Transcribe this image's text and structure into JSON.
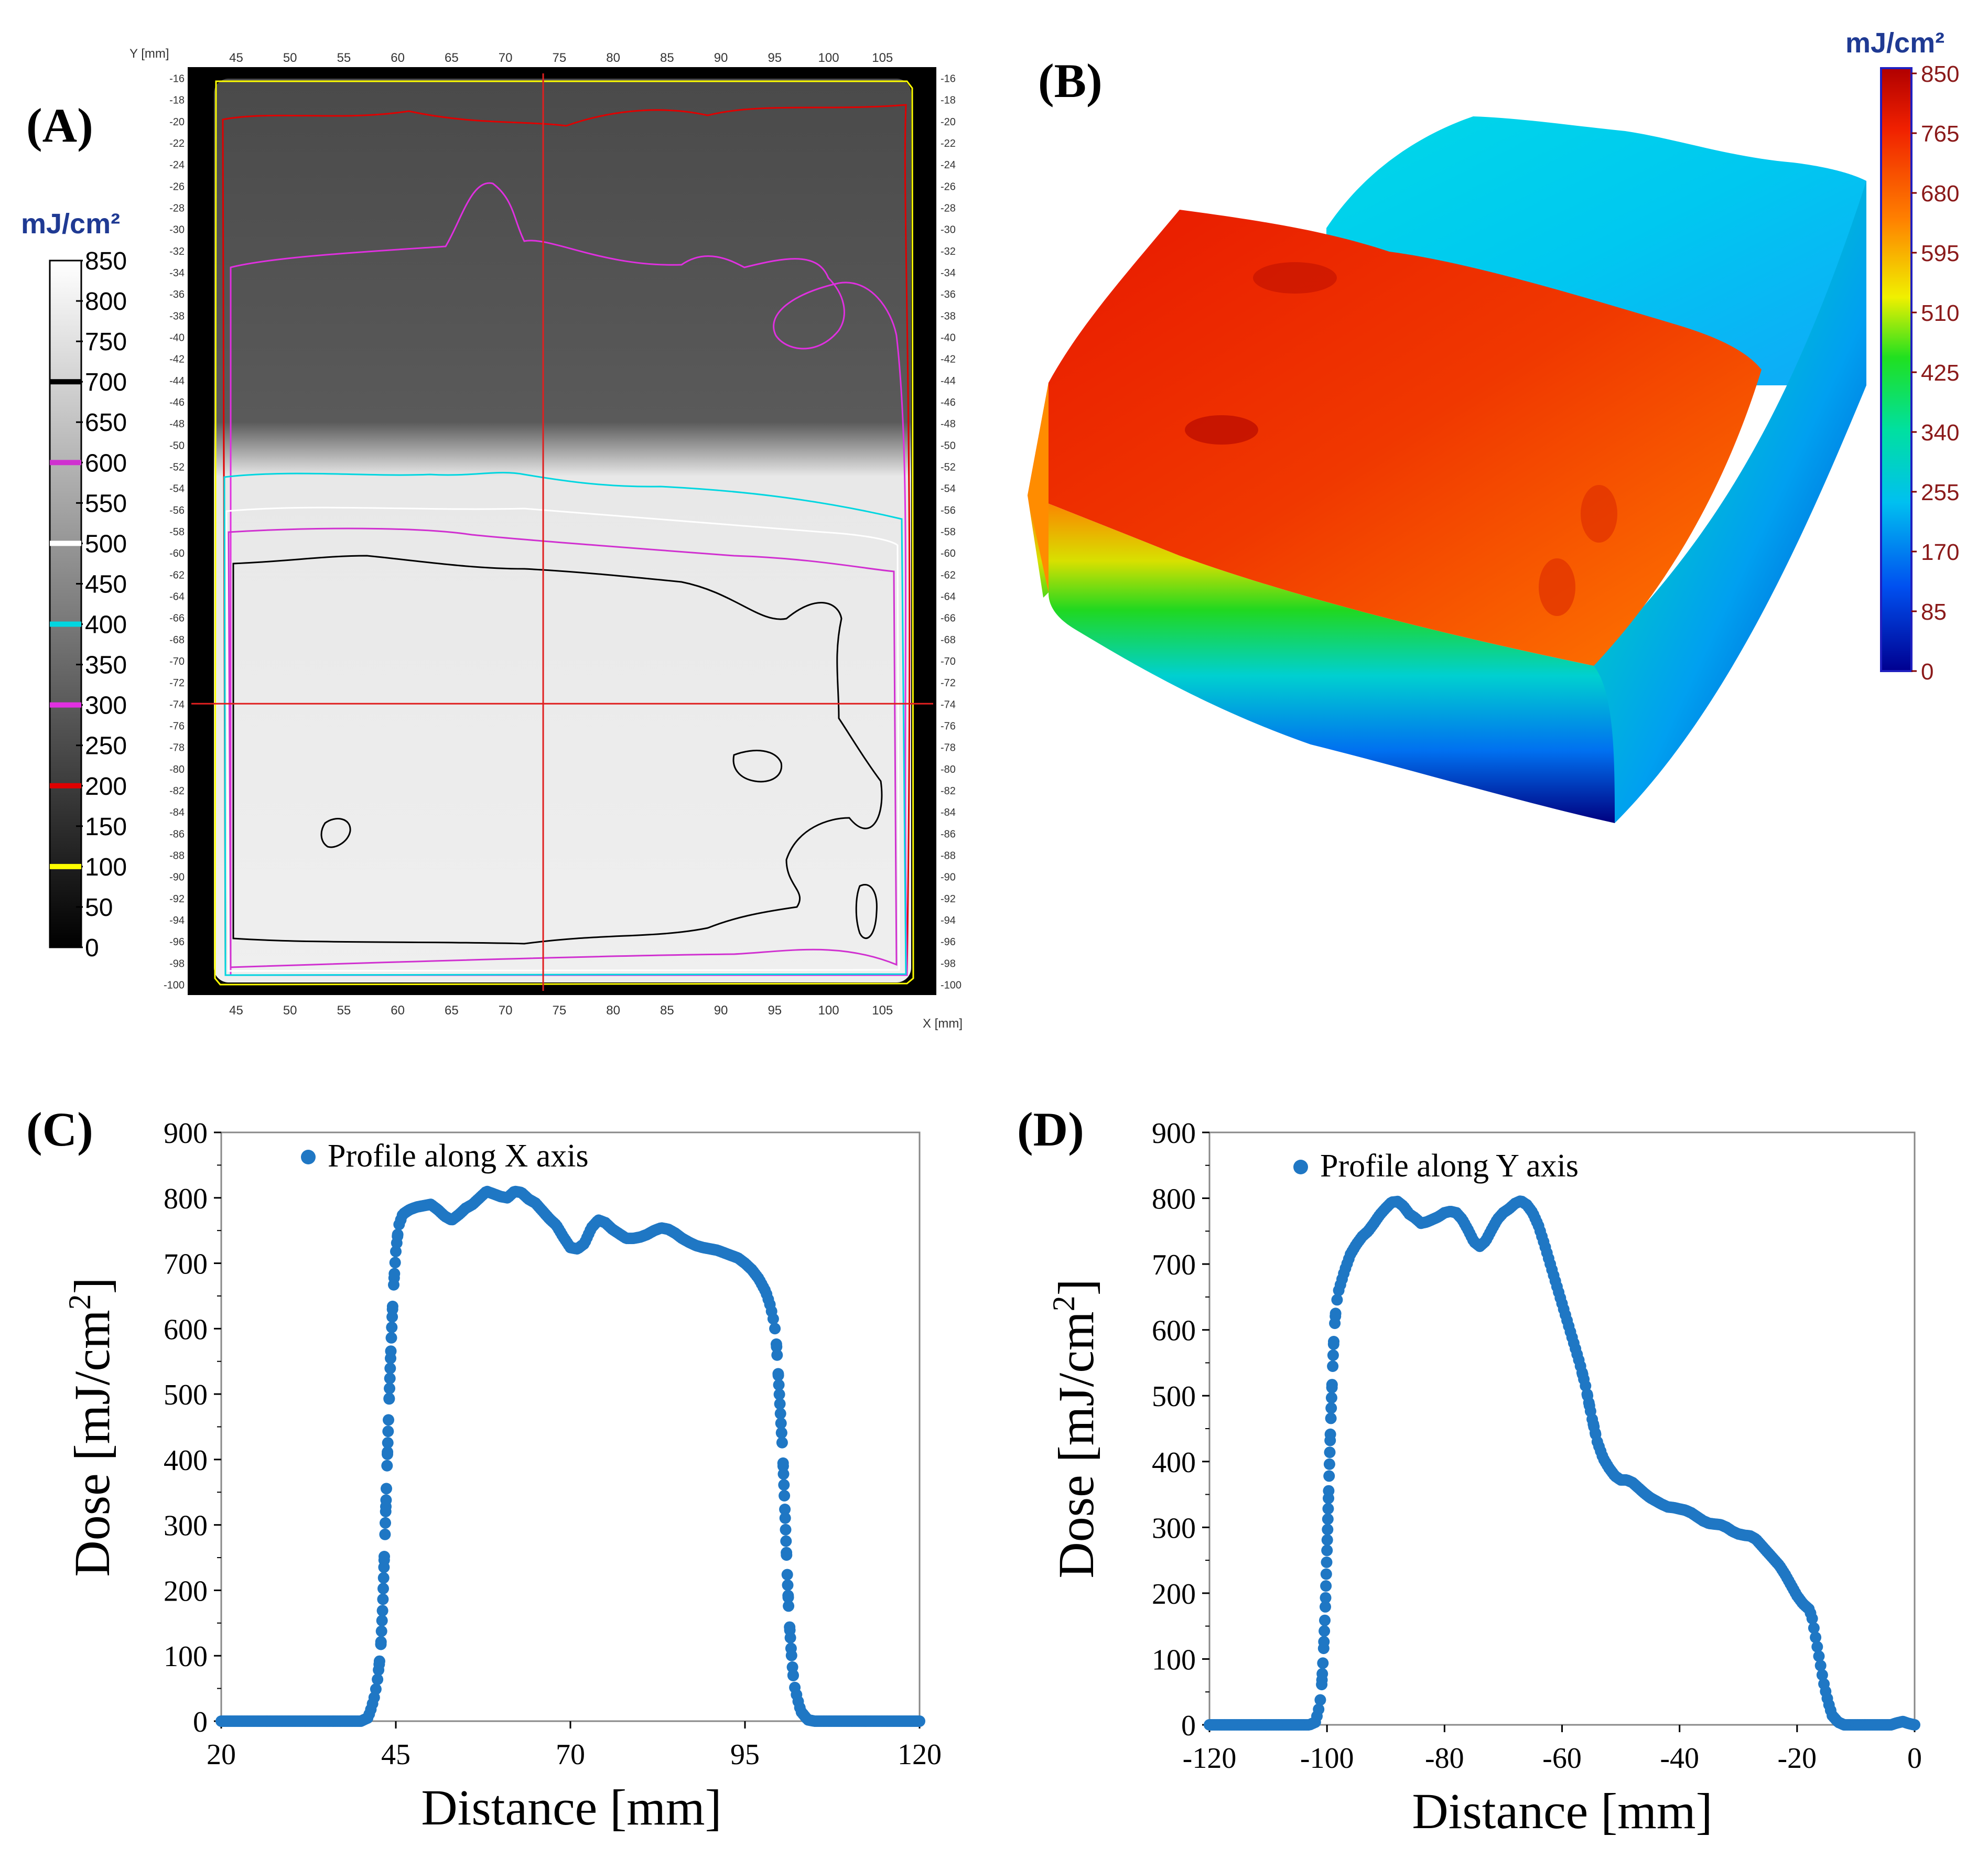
{
  "panels": {
    "a": {
      "label": "(A)"
    },
    "b": {
      "label": "(B)"
    },
    "c": {
      "label": "(C)"
    },
    "d": {
      "label": "(D)"
    }
  },
  "colors": {
    "accent": "#1f77c4",
    "unit_blue": "#1f3a93",
    "crosshair": "#e02020",
    "contour_100": "#ffff00",
    "contour_200": "#e00000",
    "contour_300": "#e030e0",
    "contour_400": "#00d6e0",
    "contour_500": "#ffffff",
    "contour_600": "#d030d0",
    "contour_700": "#000000"
  },
  "chart_data": [
    {
      "id": "A",
      "type": "heatmap",
      "title": "(A)",
      "colorbar_unit": "mJ/cm²",
      "colorbar_ticks": [
        "850",
        "800",
        "750",
        "700",
        "650",
        "600",
        "550",
        "500",
        "450",
        "400",
        "350",
        "300",
        "250",
        "200",
        "150",
        "100",
        "50",
        "0"
      ],
      "colorbar_range": [
        0,
        850
      ],
      "x_axis_label": "X [mm]",
      "y_axis_label": "Y [mm]",
      "x_ticks": [
        "45",
        "50",
        "55",
        "60",
        "65",
        "70",
        "75",
        "80",
        "85",
        "90",
        "95",
        "100",
        "105"
      ],
      "y_ticks": [
        "-16",
        "-18",
        "-20",
        "-22",
        "-24",
        "-26",
        "-28",
        "-30",
        "-32",
        "-34",
        "-36",
        "-38",
        "-40",
        "-42",
        "-44",
        "-46",
        "-48",
        "-50",
        "-52",
        "-54",
        "-56",
        "-58",
        "-60",
        "-62",
        "-64",
        "-66",
        "-68",
        "-70",
        "-72",
        "-74",
        "-76",
        "-78",
        "-80",
        "-82",
        "-84",
        "-86",
        "-88",
        "-90",
        "-92",
        "-94",
        "-96",
        "-98",
        "-100"
      ],
      "x_range": [
        40.5,
        110
      ],
      "y_range": [
        -15,
        -101
      ],
      "contour_levels": [
        100,
        200,
        300,
        400,
        500,
        600,
        700
      ],
      "crosshair": {
        "x": 73.5,
        "y": -74
      }
    },
    {
      "id": "B",
      "type": "heatmap",
      "title": "(B)",
      "colorbar_unit": "mJ/cm²",
      "colorbar_ticks": [
        "850",
        "765",
        "680",
        "595",
        "510",
        "425",
        "340",
        "255",
        "170",
        "85",
        "0"
      ],
      "colorbar_range": [
        0,
        850
      ]
    },
    {
      "id": "C",
      "type": "scatter",
      "title": "(C)",
      "legend": "Profile along X axis",
      "xlabel": "Distance [mm]",
      "ylabel_main": "Dose [mJ/cm",
      "ylabel_sup": "2",
      "ylabel_end": "]",
      "xlim": [
        20,
        120
      ],
      "ylim": [
        0,
        900
      ],
      "x_ticks": [
        "20",
        "45",
        "70",
        "95",
        "120"
      ],
      "y_ticks": [
        "0",
        "100",
        "200",
        "300",
        "400",
        "500",
        "600",
        "700",
        "800",
        "900"
      ],
      "series_points": [
        [
          20,
          0
        ],
        [
          40,
          0
        ],
        [
          41,
          5
        ],
        [
          41.5,
          20
        ],
        [
          42,
          40
        ],
        [
          42.4,
          65
        ],
        [
          42.8,
          105
        ],
        [
          43.1,
          170
        ],
        [
          43.4,
          268
        ],
        [
          43.7,
          373
        ],
        [
          44,
          478
        ],
        [
          44.3,
          570
        ],
        [
          44.6,
          650
        ],
        [
          45,
          718
        ],
        [
          45.4,
          757
        ],
        [
          46,
          775
        ],
        [
          47,
          782
        ],
        [
          48,
          786
        ],
        [
          50,
          790
        ],
        [
          51,
          782
        ],
        [
          52,
          772
        ],
        [
          53,
          766
        ],
        [
          54,
          774
        ],
        [
          55,
          784
        ],
        [
          56,
          790
        ],
        [
          57,
          800
        ],
        [
          58,
          810
        ],
        [
          59,
          806
        ],
        [
          60,
          802
        ],
        [
          61,
          800
        ],
        [
          62,
          810
        ],
        [
          63,
          808
        ],
        [
          64,
          798
        ],
        [
          65,
          792
        ],
        [
          66,
          780
        ],
        [
          67,
          768
        ],
        [
          68,
          758
        ],
        [
          69,
          740
        ],
        [
          70,
          724
        ],
        [
          71,
          722
        ],
        [
          72,
          730
        ],
        [
          73,
          754
        ],
        [
          74,
          766
        ],
        [
          75,
          762
        ],
        [
          76,
          752
        ],
        [
          77,
          745
        ],
        [
          78,
          738
        ],
        [
          79,
          738
        ],
        [
          80,
          740
        ],
        [
          81,
          744
        ],
        [
          82,
          750
        ],
        [
          83,
          754
        ],
        [
          84,
          752
        ],
        [
          85,
          746
        ],
        [
          86,
          738
        ],
        [
          87,
          732
        ],
        [
          88,
          727
        ],
        [
          89,
          724
        ],
        [
          90,
          722
        ],
        [
          91,
          720
        ],
        [
          92,
          716
        ],
        [
          93,
          712
        ],
        [
          94,
          708
        ],
        [
          95,
          700
        ],
        [
          96,
          690
        ],
        [
          97,
          676
        ],
        [
          98,
          656
        ],
        [
          98.6,
          636
        ],
        [
          99,
          618
        ],
        [
          99.4,
          593
        ],
        [
          99.7,
          543
        ],
        [
          100,
          485
        ],
        [
          100.4,
          411
        ],
        [
          100.7,
          328
        ],
        [
          101,
          240
        ],
        [
          101.3,
          160
        ],
        [
          101.7,
          95
        ],
        [
          102,
          58
        ],
        [
          102.5,
          35
        ],
        [
          103,
          15
        ],
        [
          104,
          2
        ],
        [
          105,
          0
        ],
        [
          120,
          0
        ]
      ]
    },
    {
      "id": "D",
      "type": "scatter",
      "title": "(D)",
      "legend": "Profile along Y axis",
      "xlabel": "Distance [mm]",
      "ylabel_main": "Dose [mJ/cm",
      "ylabel_sup": "2",
      "ylabel_end": "]",
      "xlim": [
        -120,
        0
      ],
      "ylim": [
        0,
        900
      ],
      "x_ticks": [
        "-120",
        "-100",
        "-80",
        "-60",
        "-40",
        "-20",
        "0"
      ],
      "y_ticks": [
        "0",
        "100",
        "200",
        "300",
        "400",
        "500",
        "600",
        "700",
        "800",
        "900"
      ],
      "series_points": [
        [
          -120,
          0
        ],
        [
          -103,
          0
        ],
        [
          -102,
          4
        ],
        [
          -101.5,
          20
        ],
        [
          -101,
          45
        ],
        [
          -100.6,
          110
        ],
        [
          -100.3,
          175
        ],
        [
          -100,
          265
        ],
        [
          -99.7,
          360
        ],
        [
          -99.4,
          450
        ],
        [
          -99.1,
          528
        ],
        [
          -98.8,
          595
        ],
        [
          -98.4,
          640
        ],
        [
          -98,
          660
        ],
        [
          -97,
          690
        ],
        [
          -96,
          715
        ],
        [
          -95,
          730
        ],
        [
          -94,
          742
        ],
        [
          -93,
          750
        ],
        [
          -92,
          762
        ],
        [
          -91,
          775
        ],
        [
          -90,
          785
        ],
        [
          -89,
          794
        ],
        [
          -88,
          795
        ],
        [
          -87,
          788
        ],
        [
          -86,
          776
        ],
        [
          -85,
          770
        ],
        [
          -84,
          762
        ],
        [
          -83,
          764
        ],
        [
          -82,
          768
        ],
        [
          -81,
          772
        ],
        [
          -80,
          778
        ],
        [
          -79,
          780
        ],
        [
          -78,
          778
        ],
        [
          -77,
          768
        ],
        [
          -76,
          752
        ],
        [
          -75,
          734
        ],
        [
          -74,
          727
        ],
        [
          -73,
          735
        ],
        [
          -72,
          752
        ],
        [
          -71,
          768
        ],
        [
          -70,
          778
        ],
        [
          -69,
          784
        ],
        [
          -68,
          792
        ],
        [
          -67,
          796
        ],
        [
          -66,
          790
        ],
        [
          -65,
          778
        ],
        [
          -64,
          758
        ],
        [
          -63,
          730
        ],
        [
          -62,
          700
        ],
        [
          -61,
          670
        ],
        [
          -60,
          640
        ],
        [
          -59,
          610
        ],
        [
          -58,
          580
        ],
        [
          -57,
          550
        ],
        [
          -56,
          515
        ],
        [
          -55,
          470
        ],
        [
          -54,
          430
        ],
        [
          -53,
          405
        ],
        [
          -52,
          390
        ],
        [
          -51,
          378
        ],
        [
          -50,
          372
        ],
        [
          -49,
          372
        ],
        [
          -48,
          368
        ],
        [
          -47,
          360
        ],
        [
          -46,
          352
        ],
        [
          -45,
          345
        ],
        [
          -44,
          340
        ],
        [
          -43,
          335
        ],
        [
          -42,
          331
        ],
        [
          -41,
          330
        ],
        [
          -40,
          328
        ],
        [
          -39,
          326
        ],
        [
          -38,
          322
        ],
        [
          -37,
          316
        ],
        [
          -36,
          310
        ],
        [
          -35,
          306
        ],
        [
          -34,
          305
        ],
        [
          -33,
          304
        ],
        [
          -32,
          300
        ],
        [
          -31,
          294
        ],
        [
          -30,
          290
        ],
        [
          -29,
          288
        ],
        [
          -28,
          287
        ],
        [
          -27,
          282
        ],
        [
          -26,
          272
        ],
        [
          -25,
          262
        ],
        [
          -24,
          252
        ],
        [
          -23,
          242
        ],
        [
          -22,
          228
        ],
        [
          -21,
          212
        ],
        [
          -20,
          196
        ],
        [
          -19,
          184
        ],
        [
          -18,
          176
        ],
        [
          -17.5,
          165
        ],
        [
          -17,
          140
        ],
        [
          -16.5,
          115
        ],
        [
          -16,
          90
        ],
        [
          -15.5,
          65
        ],
        [
          -15,
          45
        ],
        [
          -14.5,
          28
        ],
        [
          -14,
          14
        ],
        [
          -13,
          4
        ],
        [
          -12,
          0
        ],
        [
          -4,
          0
        ],
        [
          -3,
          3
        ],
        [
          -2,
          5
        ],
        [
          -1,
          2
        ],
        [
          0,
          0
        ]
      ]
    }
  ]
}
